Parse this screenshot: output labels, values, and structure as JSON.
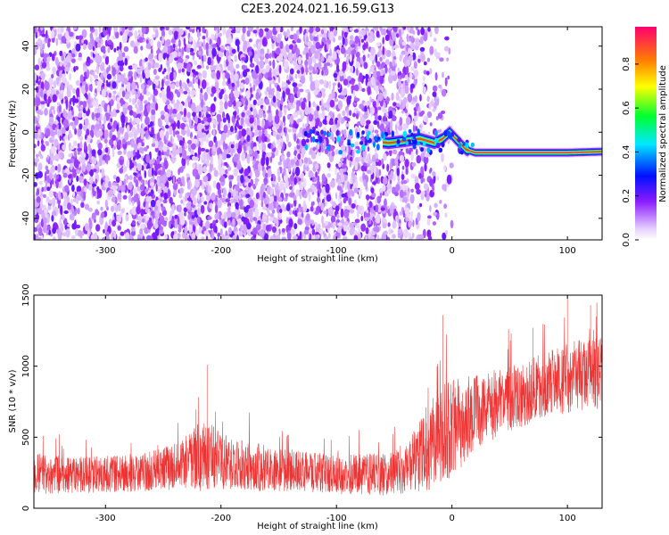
{
  "title": "C2E3.2024.021.16.59.G13",
  "chart_data": [
    {
      "type": "heatmap",
      "xlabel": "Height of straight line (km)",
      "ylabel": "Frequency (Hz)",
      "xlim": [
        -362,
        130
      ],
      "ylim": [
        -50,
        49
      ],
      "xticks": [
        -300,
        -200,
        -100,
        0,
        100
      ],
      "yticks": [
        -40,
        -20,
        0,
        20,
        40
      ],
      "grid": false,
      "colorbar": {
        "label": "Normalized spectral amplitude",
        "range": [
          0.0,
          0.97
        ],
        "ticks": [
          0.0,
          0.2,
          0.4,
          0.6,
          0.8
        ],
        "colormap": [
          "#ffffff",
          "#e8d2ff",
          "#8a1cff",
          "#0010ff",
          "#00e8ff",
          "#00ff30",
          "#ffff00",
          "#ff8000",
          "#ff0070"
        ]
      },
      "ridge": {
        "description_points": [
          {
            "x": -125,
            "y": 4
          },
          {
            "x": -110,
            "y": 3
          },
          {
            "x": -95,
            "y": -3
          },
          {
            "x": -70,
            "y": -4
          },
          {
            "x": -55,
            "y": -5
          },
          {
            "x": -40,
            "y": -4
          },
          {
            "x": -28,
            "y": -3
          },
          {
            "x": -15,
            "y": -5
          },
          {
            "x": -8,
            "y": -3
          },
          {
            "x": -2,
            "y": 0
          },
          {
            "x": 5,
            "y": -4
          },
          {
            "x": 12,
            "y": -8
          },
          {
            "x": 20,
            "y": -9.5
          },
          {
            "x": 60,
            "y": -9.5
          },
          {
            "x": 100,
            "y": -9.5
          },
          {
            "x": 130,
            "y": -9
          }
        ],
        "peak_amplitude": 0.9
      },
      "noise": {
        "x_range": [
          -362,
          0
        ],
        "fade_start": -50,
        "fade_end": 10
      }
    },
    {
      "type": "line",
      "color": "#ee3333",
      "xlabel": "Height of straight line (km)",
      "ylabel": "SNR (10 * v/v)",
      "xlim": [
        -362,
        130
      ],
      "ylim": [
        0,
        1500
      ],
      "xticks": [
        -300,
        -200,
        -100,
        0,
        100
      ],
      "yticks": [
        0,
        500,
        1000,
        1500
      ],
      "grid": false,
      "envelope": [
        {
          "x": -362,
          "mean": 240,
          "spread": 150
        },
        {
          "x": -330,
          "mean": 230,
          "spread": 130
        },
        {
          "x": -300,
          "mean": 240,
          "spread": 130
        },
        {
          "x": -260,
          "mean": 260,
          "spread": 140
        },
        {
          "x": -235,
          "mean": 300,
          "spread": 170
        },
        {
          "x": -215,
          "mean": 380,
          "spread": 260
        },
        {
          "x": -200,
          "mean": 330,
          "spread": 200
        },
        {
          "x": -170,
          "mean": 290,
          "spread": 170
        },
        {
          "x": -130,
          "mean": 260,
          "spread": 140
        },
        {
          "x": -100,
          "mean": 240,
          "spread": 140
        },
        {
          "x": -60,
          "mean": 240,
          "spread": 150
        },
        {
          "x": -40,
          "mean": 280,
          "spread": 180
        },
        {
          "x": -20,
          "mean": 420,
          "spread": 300
        },
        {
          "x": 0,
          "mean": 560,
          "spread": 360
        },
        {
          "x": 20,
          "mean": 680,
          "spread": 260
        },
        {
          "x": 50,
          "mean": 770,
          "spread": 230
        },
        {
          "x": 80,
          "mean": 860,
          "spread": 230
        },
        {
          "x": 100,
          "mean": 920,
          "spread": 250
        },
        {
          "x": 130,
          "mean": 960,
          "spread": 260
        }
      ],
      "notable_peaks": [
        {
          "x": -212,
          "y": 1010
        },
        {
          "x": 100,
          "y": 1500
        },
        {
          "x": 120,
          "y": 1430
        },
        {
          "x": -8,
          "y": 1360
        },
        {
          "x": 70,
          "y": 1270
        }
      ]
    }
  ]
}
